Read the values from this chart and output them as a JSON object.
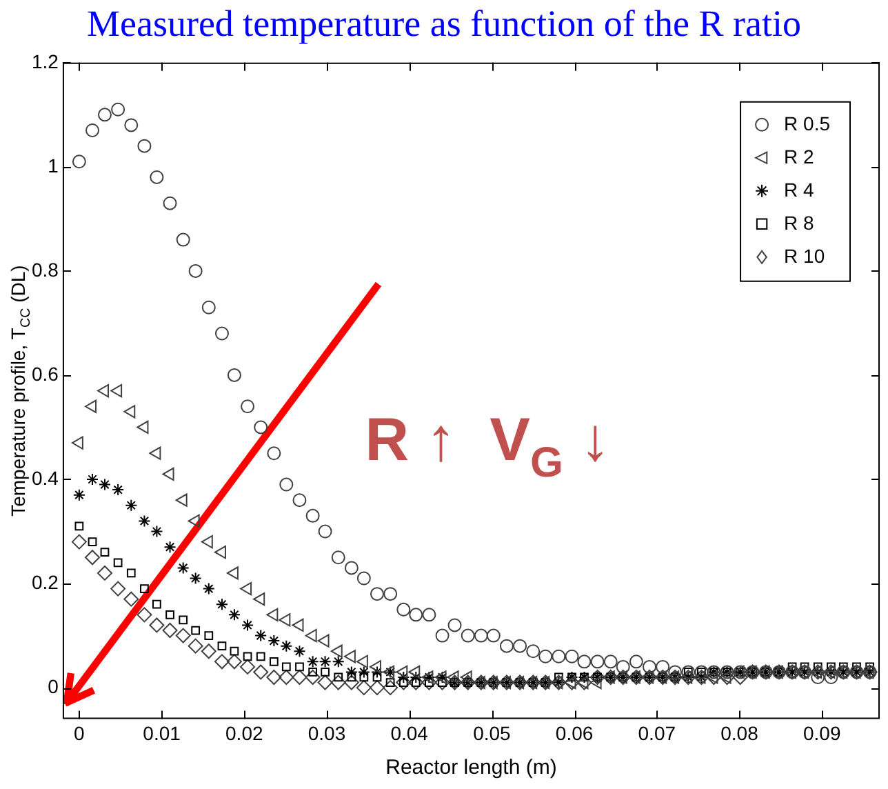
{
  "chart_data": {
    "type": "scatter",
    "title": "Measured temperature as function of the R ratio",
    "xlabel": "Reactor length (m)",
    "ylabel": "Temperature profile, T$_{CC}$ (DL)",
    "annotations": [
      "R ↑  V$_{G}$ ↓"
    ],
    "x": [
      0,
      0.0016,
      0.0031,
      0.0047,
      0.0063,
      0.0079,
      0.0094,
      0.011,
      0.0126,
      0.0141,
      0.0157,
      0.0173,
      0.0188,
      0.0204,
      0.022,
      0.0236,
      0.0251,
      0.0267,
      0.0283,
      0.0298,
      0.0314,
      0.033,
      0.0345,
      0.0361,
      0.0377,
      0.0393,
      0.0408,
      0.0424,
      0.044,
      0.0455,
      0.0471,
      0.0487,
      0.0502,
      0.0518,
      0.0534,
      0.055,
      0.0565,
      0.0581,
      0.0597,
      0.0612,
      0.0628,
      0.0644,
      0.0659,
      0.0675,
      0.0691,
      0.0707,
      0.0722,
      0.0738,
      0.0754,
      0.0769,
      0.0785,
      0.0801,
      0.0816,
      0.0832,
      0.0848,
      0.0864,
      0.0879,
      0.0895,
      0.0911,
      0.0926,
      0.0942,
      0.0958
    ],
    "series": [
      {
        "name": "R 0.5",
        "color": "#404040",
        "marker": "circle",
        "values": [
          1.01,
          1.07,
          1.1,
          1.11,
          1.08,
          1.04,
          0.98,
          0.93,
          0.86,
          0.8,
          0.73,
          0.68,
          0.6,
          0.54,
          0.5,
          0.45,
          0.39,
          0.36,
          0.33,
          0.3,
          0.25,
          0.23,
          0.21,
          0.18,
          0.18,
          0.15,
          0.14,
          0.14,
          0.1,
          0.12,
          0.1,
          0.1,
          0.1,
          0.08,
          0.08,
          0.07,
          0.06,
          0.06,
          0.06,
          0.05,
          0.05,
          0.05,
          0.04,
          0.05,
          0.04,
          0.04,
          0.03,
          0.03,
          0.03,
          0.03,
          0.03,
          0.03,
          0.03,
          0.03,
          0.03,
          0.03,
          0.03,
          0.02,
          0.02,
          0.03,
          0.03,
          0.03
        ]
      },
      {
        "name": "R 2",
        "color": "#404040",
        "marker": "triangle",
        "values": [
          0.47,
          0.54,
          0.57,
          0.57,
          0.53,
          0.5,
          0.45,
          0.41,
          0.36,
          0.32,
          0.28,
          0.26,
          0.22,
          0.19,
          0.17,
          0.14,
          0.13,
          0.12,
          0.1,
          0.09,
          0.07,
          0.06,
          0.05,
          0.04,
          0.03,
          0.03,
          0.03,
          0.02,
          0.02,
          0.02,
          0.02,
          0.01,
          0.01,
          0.01,
          0.01,
          0.01,
          0.01,
          0.01,
          0.01,
          0.01,
          0.01,
          0.02,
          0.02,
          0.02,
          0.02,
          0.02,
          0.02,
          0.02,
          0.02,
          0.02,
          0.02,
          0.03,
          0.03,
          0.03,
          0.03,
          0.03,
          0.03,
          0.03,
          0.03,
          0.03,
          0.03,
          0.03
        ]
      },
      {
        "name": "R 4",
        "color": "#000000",
        "marker": "cross",
        "values": [
          0.37,
          0.4,
          0.39,
          0.38,
          0.35,
          0.32,
          0.3,
          0.27,
          0.23,
          0.21,
          0.19,
          0.16,
          0.14,
          0.12,
          0.1,
          0.09,
          0.08,
          0.07,
          0.05,
          0.05,
          0.05,
          0.03,
          0.03,
          0.03,
          0.03,
          0.02,
          0.02,
          0.02,
          0.02,
          0.01,
          0.01,
          0.01,
          0.01,
          0.01,
          0.01,
          0.01,
          0.01,
          0.01,
          0.02,
          0.02,
          0.02,
          0.02,
          0.02,
          0.02,
          0.02,
          0.02,
          0.02,
          0.02,
          0.02,
          0.03,
          0.03,
          0.03,
          0.03,
          0.03,
          0.03,
          0.03,
          0.03,
          0.03,
          0.03,
          0.03,
          0.03,
          0.03
        ]
      },
      {
        "name": "R 8",
        "color": "#000000",
        "marker": "square",
        "values": [
          0.31,
          0.28,
          0.26,
          0.24,
          0.22,
          0.19,
          0.16,
          0.14,
          0.13,
          0.11,
          0.1,
          0.08,
          0.07,
          0.06,
          0.06,
          0.05,
          0.04,
          0.04,
          0.03,
          0.03,
          0.02,
          0.02,
          0.02,
          0.02,
          0.01,
          0.01,
          0.01,
          0.01,
          0.01,
          0.01,
          0.01,
          0.01,
          0.01,
          0.01,
          0.01,
          0.01,
          0.01,
          0.02,
          0.02,
          0.02,
          0.02,
          0.02,
          0.02,
          0.02,
          0.02,
          0.02,
          0.02,
          0.03,
          0.03,
          0.03,
          0.03,
          0.03,
          0.03,
          0.03,
          0.03,
          0.04,
          0.04,
          0.04,
          0.04,
          0.04,
          0.04,
          0.04
        ]
      },
      {
        "name": "R 10",
        "color": "#404040",
        "marker": "diamond",
        "values": [
          0.28,
          0.25,
          0.22,
          0.19,
          0.17,
          0.14,
          0.12,
          0.11,
          0.1,
          0.08,
          0.07,
          0.05,
          0.05,
          0.04,
          0.03,
          0.02,
          0.02,
          0.02,
          0.02,
          0.01,
          0.01,
          0.01,
          0.0,
          0.0,
          0.0,
          0.01,
          0.01,
          0.01,
          0.01,
          0.01,
          0.01,
          0.01,
          0.01,
          0.01,
          0.01,
          0.01,
          0.01,
          0.01,
          0.01,
          0.01,
          0.02,
          0.02,
          0.02,
          0.02,
          0.02,
          0.02,
          0.02,
          0.02,
          0.02,
          0.02,
          0.02,
          0.02,
          0.03,
          0.03,
          0.03,
          0.03,
          0.03,
          0.03,
          0.03,
          0.03,
          0.03,
          0.03
        ]
      }
    ],
    "xlim": [
      -0.002,
      0.097
    ],
    "ylim": [
      -0.06,
      1.2
    ],
    "xticks": [
      0,
      0.01,
      0.02,
      0.03,
      0.04,
      0.05,
      0.06,
      0.07,
      0.08,
      0.09
    ],
    "yticks": [
      0,
      0.2,
      0.4,
      0.6,
      0.8,
      1,
      1.2
    ],
    "grid": false,
    "legend": "top right"
  }
}
